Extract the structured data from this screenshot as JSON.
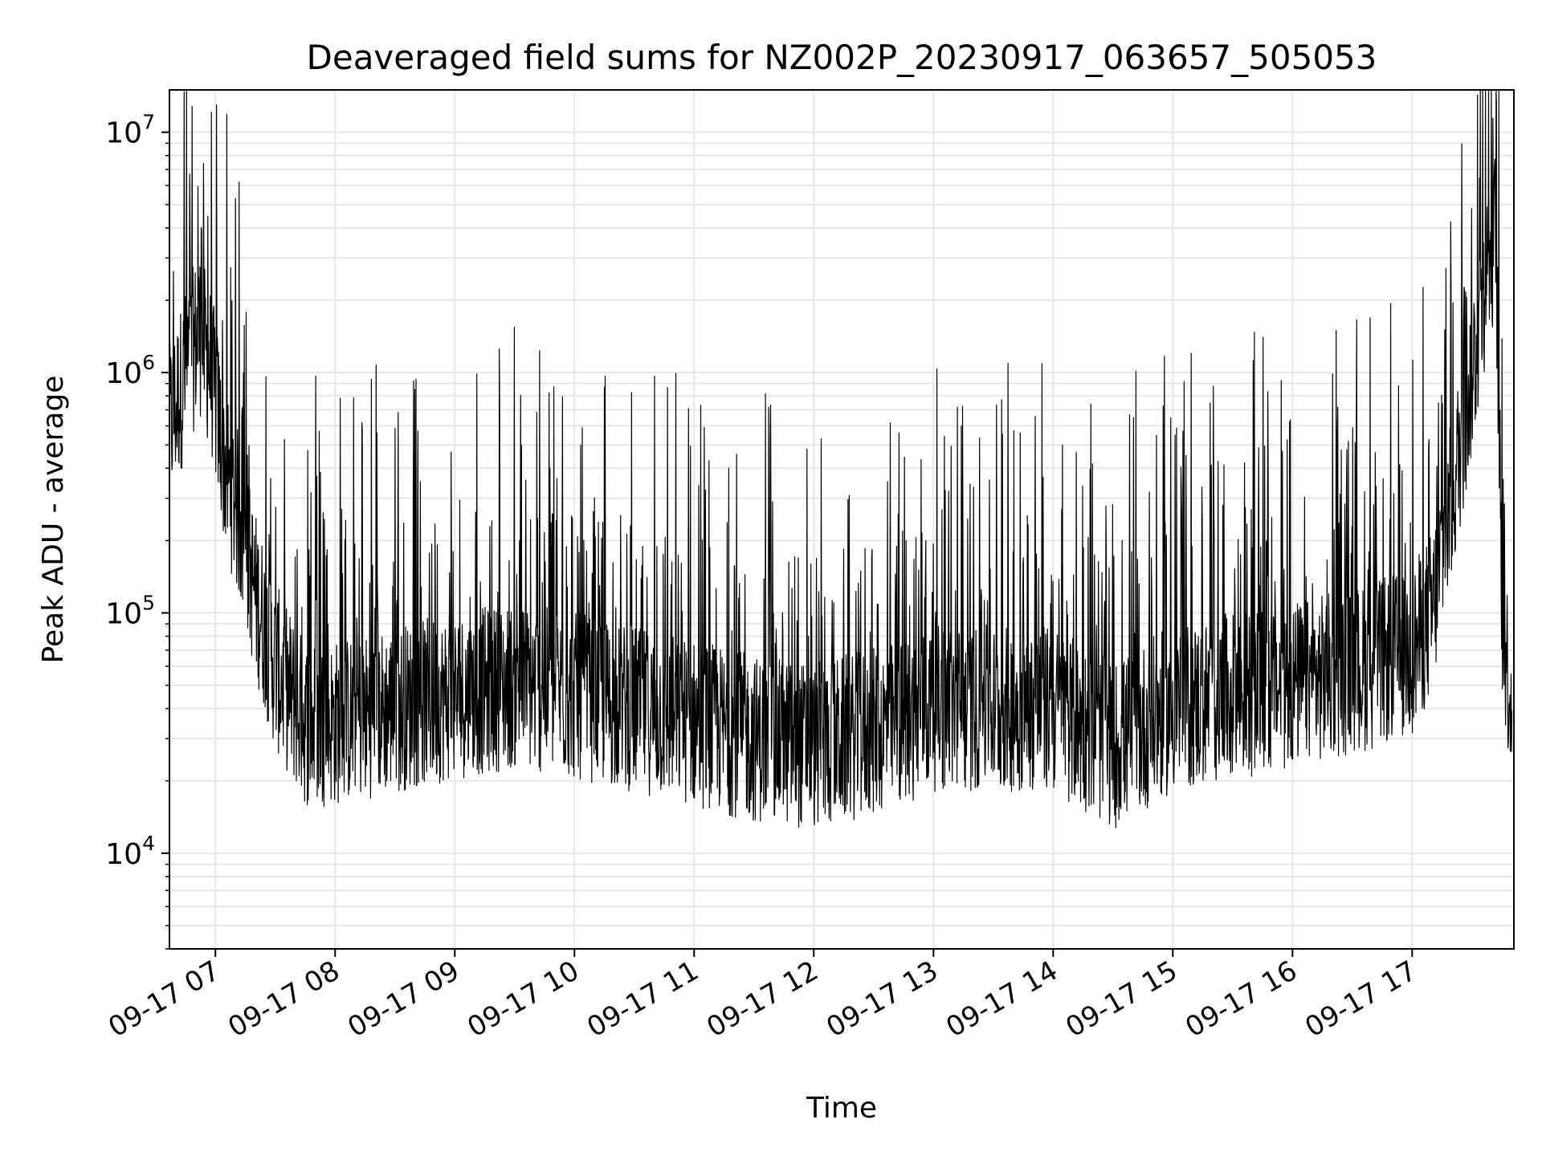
{
  "chart_data": {
    "type": "line",
    "title": "Deaveraged field sums for NZ002P_20230917_063657_505053",
    "xlabel": "Time",
    "ylabel": "Peak ADU - average",
    "yscale": "log",
    "ylim": [
      4000,
      15000000
    ],
    "xlim": [
      "2023-09-17 06:36:57",
      "2023-09-17 17:51:00"
    ],
    "grid": true,
    "grid_color": "#e6e6e6",
    "line_color": "#000000",
    "x_ticks": [
      "2023-09-17 07:00",
      "2023-09-17 08:00",
      "2023-09-17 09:00",
      "2023-09-17 10:00",
      "2023-09-17 11:00",
      "2023-09-17 12:00",
      "2023-09-17 13:00",
      "2023-09-17 14:00",
      "2023-09-17 15:00",
      "2023-09-17 16:00",
      "2023-09-17 17:00"
    ],
    "x_tick_labels": [
      "09-17 07",
      "09-17 08",
      "09-17 09",
      "09-17 10",
      "09-17 11",
      "09-17 12",
      "09-17 13",
      "09-17 14",
      "09-17 15",
      "09-17 16",
      "09-17 17"
    ],
    "y_ticks": [
      10000,
      100000,
      1000000,
      10000000
    ],
    "y_tick_labels": [
      {
        "base": "10",
        "exp": "4"
      },
      {
        "base": "10",
        "exp": "5"
      },
      {
        "base": "10",
        "exp": "6"
      },
      {
        "base": "10",
        "exp": "7"
      }
    ],
    "series": [
      {
        "x": [
          "2023-09-17 06:37",
          "2023-09-17 06:45",
          "2023-09-17 06:52",
          "2023-09-17 06:58",
          "2023-09-17 07:05",
          "2023-09-17 07:12",
          "2023-09-17 07:20",
          "2023-09-17 07:30",
          "2023-09-17 07:45",
          "2023-09-17 08:00",
          "2023-09-17 08:30",
          "2023-09-17 09:00",
          "2023-09-17 09:30",
          "2023-09-17 10:00",
          "2023-09-17 10:30",
          "2023-09-17 11:00",
          "2023-09-17 11:30",
          "2023-09-17 12:00",
          "2023-09-17 12:30",
          "2023-09-17 13:00",
          "2023-09-17 13:30",
          "2023-09-17 14:00",
          "2023-09-17 14:30",
          "2023-09-17 15:00",
          "2023-09-17 15:30",
          "2023-09-17 16:00",
          "2023-09-17 16:20",
          "2023-09-17 16:40",
          "2023-09-17 17:00",
          "2023-09-17 17:10",
          "2023-09-17 17:20",
          "2023-09-17 17:30",
          "2023-09-17 17:37",
          "2023-09-17 17:42",
          "2023-09-17 17:45",
          "2023-09-17 17:50"
        ],
        "values": [
          600000,
          1000000,
          1500000,
          1000000,
          400000,
          250000,
          120000,
          60000,
          35000,
          35000,
          40000,
          45000,
          50000,
          45000,
          40000,
          35000,
          30000,
          28000,
          32000,
          40000,
          40000,
          40000,
          28000,
          40000,
          45000,
          50000,
          55000,
          60000,
          70000,
          100000,
          300000,
          1000000,
          2500000,
          4000000,
          100000,
          40000
        ]
      }
    ]
  }
}
